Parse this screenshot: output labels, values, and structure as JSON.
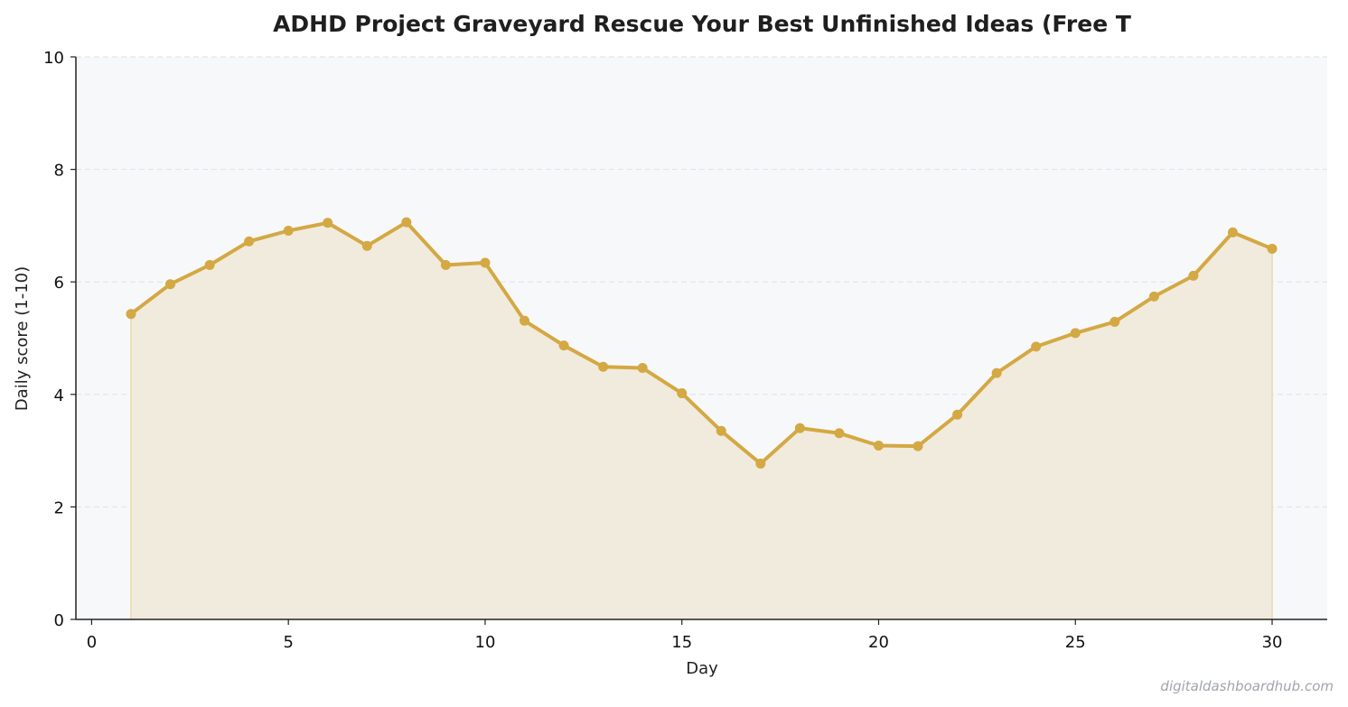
{
  "chart_data": {
    "type": "area",
    "title": "ADHD Project Graveyard  Rescue Your Best Unfinished Ideas (Free T",
    "xlabel": "Day",
    "ylabel": "Daily score (1-10)",
    "xlim": [
      -0.4,
      31.4
    ],
    "ylim": [
      0,
      10
    ],
    "x_ticks": [
      0,
      5,
      10,
      15,
      20,
      25,
      30
    ],
    "y_ticks": [
      0,
      2,
      4,
      6,
      8,
      10
    ],
    "grid": "horizontal dashed",
    "line_color": "#d4a843",
    "fill_color": "#f1ebdd",
    "plot_background": "#f7f8fa",
    "series": [
      {
        "x": [
          1,
          2,
          3,
          4,
          5,
          6,
          7,
          8,
          9,
          10,
          11,
          12,
          13,
          14,
          15,
          16,
          17,
          18,
          19,
          20,
          21,
          22,
          23,
          24,
          25,
          26,
          27,
          28,
          29,
          30
        ],
        "values": [
          5.43,
          5.96,
          6.3,
          6.72,
          6.91,
          7.05,
          6.64,
          7.06,
          6.3,
          6.34,
          5.31,
          4.87,
          4.49,
          4.47,
          4.02,
          3.35,
          2.77,
          3.4,
          3.31,
          3.09,
          3.08,
          3.64,
          4.38,
          4.85,
          5.09,
          5.29,
          5.74,
          6.11,
          6.88,
          6.59
        ]
      }
    ]
  },
  "watermark": "digitaldashboardhub.com"
}
